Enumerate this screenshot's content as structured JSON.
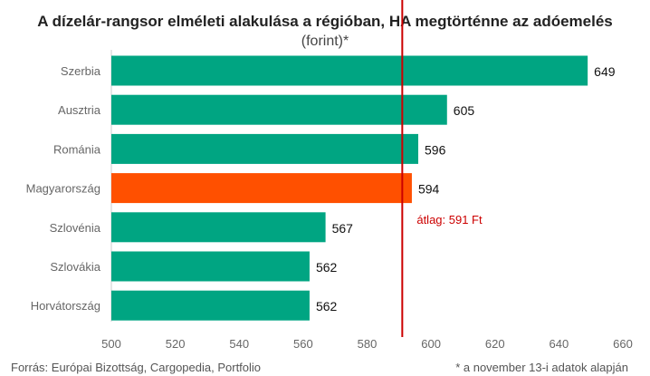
{
  "title": "A dízelár-rangsor elméleti alakulása a régióban, HA megtörténne az adóemelés",
  "subtitle": "(forint)*",
  "source": "Forrás: Európai Bizottság, Cargopedia, Portfolio",
  "footnote": "* a november 13-i adatok alapján",
  "colors": {
    "default_bar": "#00a582",
    "highlight_bar": "#ff5000",
    "average_line": "#cc0000",
    "text": "#111111",
    "axis_text": "#666666"
  },
  "chart_data": {
    "type": "bar",
    "orientation": "horizontal",
    "categories": [
      "Szerbia",
      "Ausztria",
      "Románia",
      "Magyarország",
      "Szlovénia",
      "Szlovákia",
      "Horvátország"
    ],
    "values": [
      649,
      605,
      596,
      594,
      567,
      562,
      562
    ],
    "highlight": "Magyarország",
    "xlim": [
      500,
      660
    ],
    "xticks": [
      500,
      520,
      540,
      560,
      580,
      600,
      620,
      640,
      660
    ],
    "average": {
      "value": 591,
      "label": "átlag: 591 Ft"
    },
    "grid": false
  }
}
